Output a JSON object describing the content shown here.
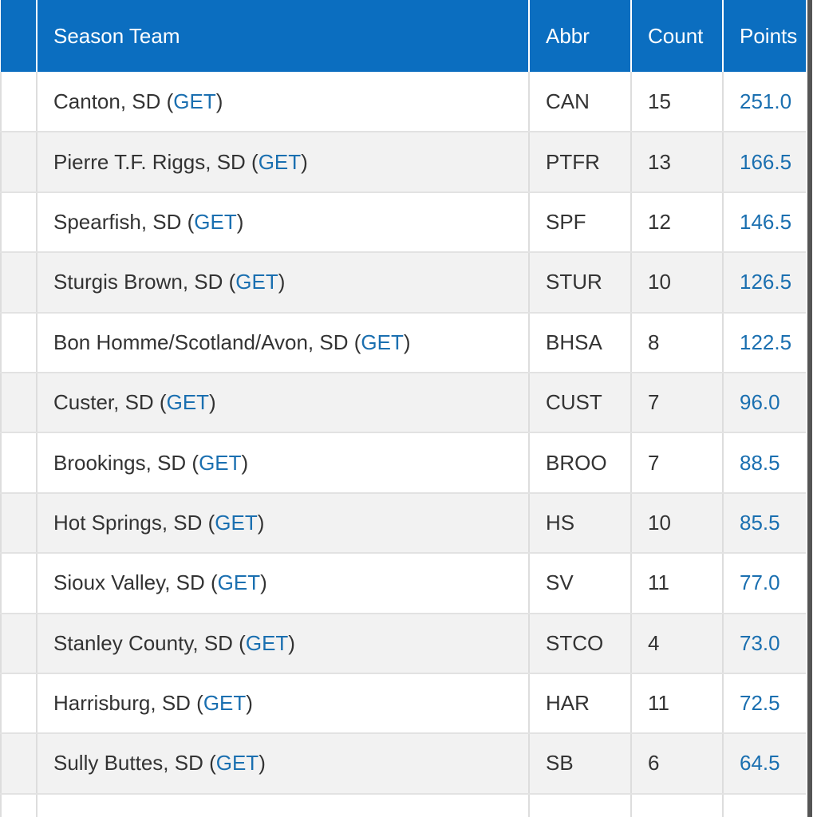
{
  "table": {
    "headers": [
      "Season Team",
      "Abbr",
      "Count",
      "Points"
    ],
    "rows": [
      {
        "team": "Canton, SD (",
        "link": "GET",
        "suffix": ")",
        "abbr": "CAN",
        "count": 15,
        "points": "251.0"
      },
      {
        "team": "Pierre T.F. Riggs, SD (",
        "link": "GET",
        "suffix": ")",
        "abbr": "PTFR",
        "count": 13,
        "points": "166.5"
      },
      {
        "team": "Spearfish, SD (",
        "link": "GET",
        "suffix": ")",
        "abbr": "SPF",
        "count": 12,
        "points": "146.5"
      },
      {
        "team": "Sturgis Brown, SD (",
        "link": "GET",
        "suffix": ")",
        "abbr": "STUR",
        "count": 10,
        "points": "126.5"
      },
      {
        "team": "Bon Homme/Scotland/Avon, SD (",
        "link": "GET",
        "suffix": ")",
        "abbr": "BHSA",
        "count": 8,
        "points": "122.5"
      },
      {
        "team": "Custer, SD (",
        "link": "GET",
        "suffix": ")",
        "abbr": "CUST",
        "count": 7,
        "points": "96.0"
      },
      {
        "team": "Brookings, SD (",
        "link": "GET",
        "suffix": ")",
        "abbr": "BROO",
        "count": 7,
        "points": "88.5"
      },
      {
        "team": "Hot Springs, SD (",
        "link": "GET",
        "suffix": ")",
        "abbr": "HS",
        "count": 10,
        "points": "85.5"
      },
      {
        "team": "Sioux Valley, SD (",
        "link": "GET",
        "suffix": ")",
        "abbr": "SV",
        "count": 11,
        "points": "77.0"
      },
      {
        "team": "Stanley County, SD (",
        "link": "GET",
        "suffix": ")",
        "abbr": "STCO",
        "count": 4,
        "points": "73.0"
      },
      {
        "team": "Harrisburg, SD (",
        "link": "GET",
        "suffix": ")",
        "abbr": "HAR",
        "count": 11,
        "points": "72.5"
      },
      {
        "team": "Sully Buttes, SD (",
        "link": "GET",
        "suffix": ")",
        "abbr": "SB",
        "count": 6,
        "points": "64.5"
      }
    ]
  }
}
